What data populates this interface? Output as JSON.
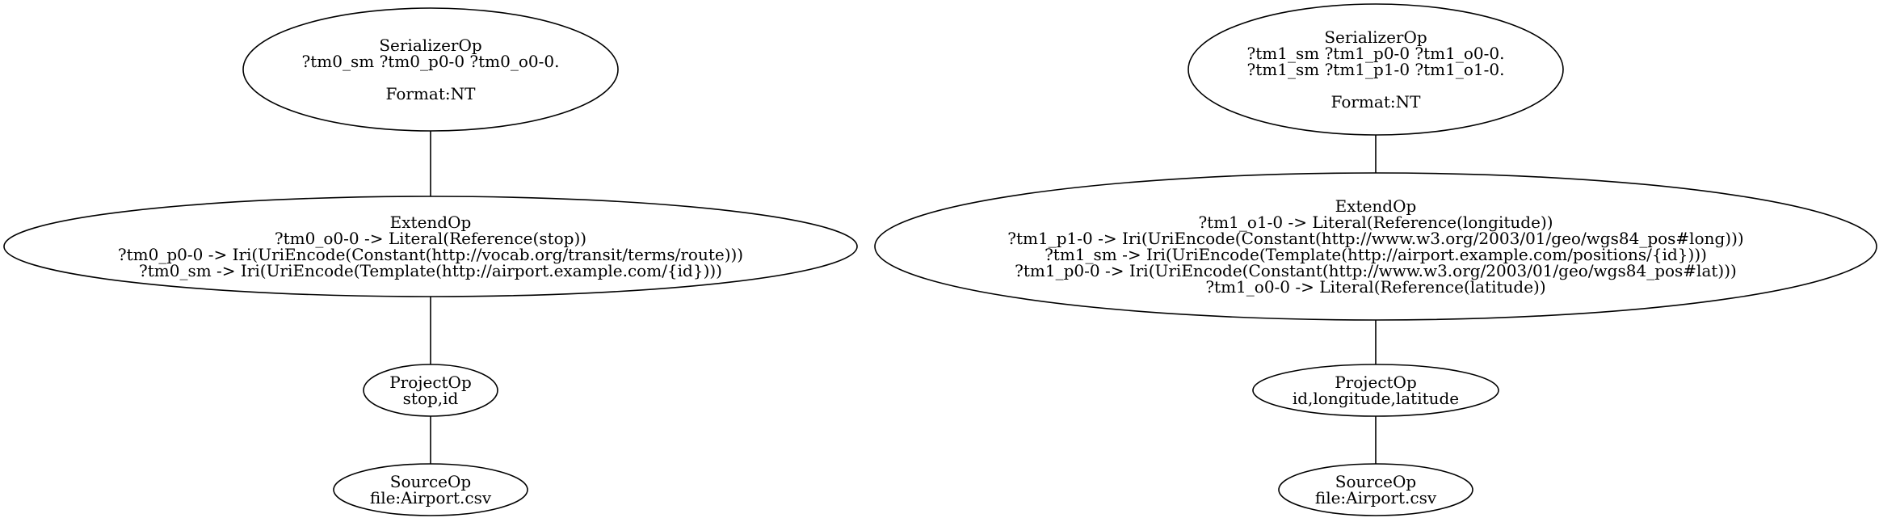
{
  "graphs": [
    {
      "nodes": [
        {
          "id": "ser0",
          "lines": [
            "SerializerOp",
            "?tm0_sm ?tm0_p0-0 ?tm0_o0-0.",
            "",
            "Format:NT"
          ]
        },
        {
          "id": "ext0",
          "lines": [
            "ExtendOp",
            "?tm0_o0-0 -> Literal(Reference(stop))",
            "?tm0_p0-0 -> Iri(UriEncode(Constant(http://vocab.org/transit/terms/route)))",
            "?tm0_sm -> Iri(UriEncode(Template(http://airport.example.com/{id})))"
          ]
        },
        {
          "id": "proj0",
          "lines": [
            "ProjectOp",
            "stop,id"
          ]
        },
        {
          "id": "src0",
          "lines": [
            "SourceOp",
            "file:Airport.csv"
          ]
        }
      ],
      "edges": [
        [
          "ser0",
          "ext0"
        ],
        [
          "ext0",
          "proj0"
        ],
        [
          "proj0",
          "src0"
        ]
      ]
    },
    {
      "nodes": [
        {
          "id": "ser1",
          "lines": [
            "SerializerOp",
            "?tm1_sm ?tm1_p0-0 ?tm1_o0-0.",
            "?tm1_sm ?tm1_p1-0 ?tm1_o1-0.",
            "",
            "Format:NT"
          ]
        },
        {
          "id": "ext1",
          "lines": [
            "ExtendOp",
            "?tm1_o1-0 -> Literal(Reference(longitude))",
            "?tm1_p1-0 -> Iri(UriEncode(Constant(http://www.w3.org/2003/01/geo/wgs84_pos#long)))",
            "?tm1_sm -> Iri(UriEncode(Template(http://airport.example.com/positions/{id})))",
            "?tm1_p0-0 -> Iri(UriEncode(Constant(http://www.w3.org/2003/01/geo/wgs84_pos#lat)))",
            "?tm1_o0-0 -> Literal(Reference(latitude))"
          ]
        },
        {
          "id": "proj1",
          "lines": [
            "ProjectOp",
            "id,longitude,latitude"
          ]
        },
        {
          "id": "src1",
          "lines": [
            "SourceOp",
            "file:Airport.csv"
          ]
        }
      ],
      "edges": [
        [
          "ser1",
          "ext1"
        ],
        [
          "ext1",
          "proj1"
        ],
        [
          "proj1",
          "src1"
        ]
      ]
    }
  ]
}
